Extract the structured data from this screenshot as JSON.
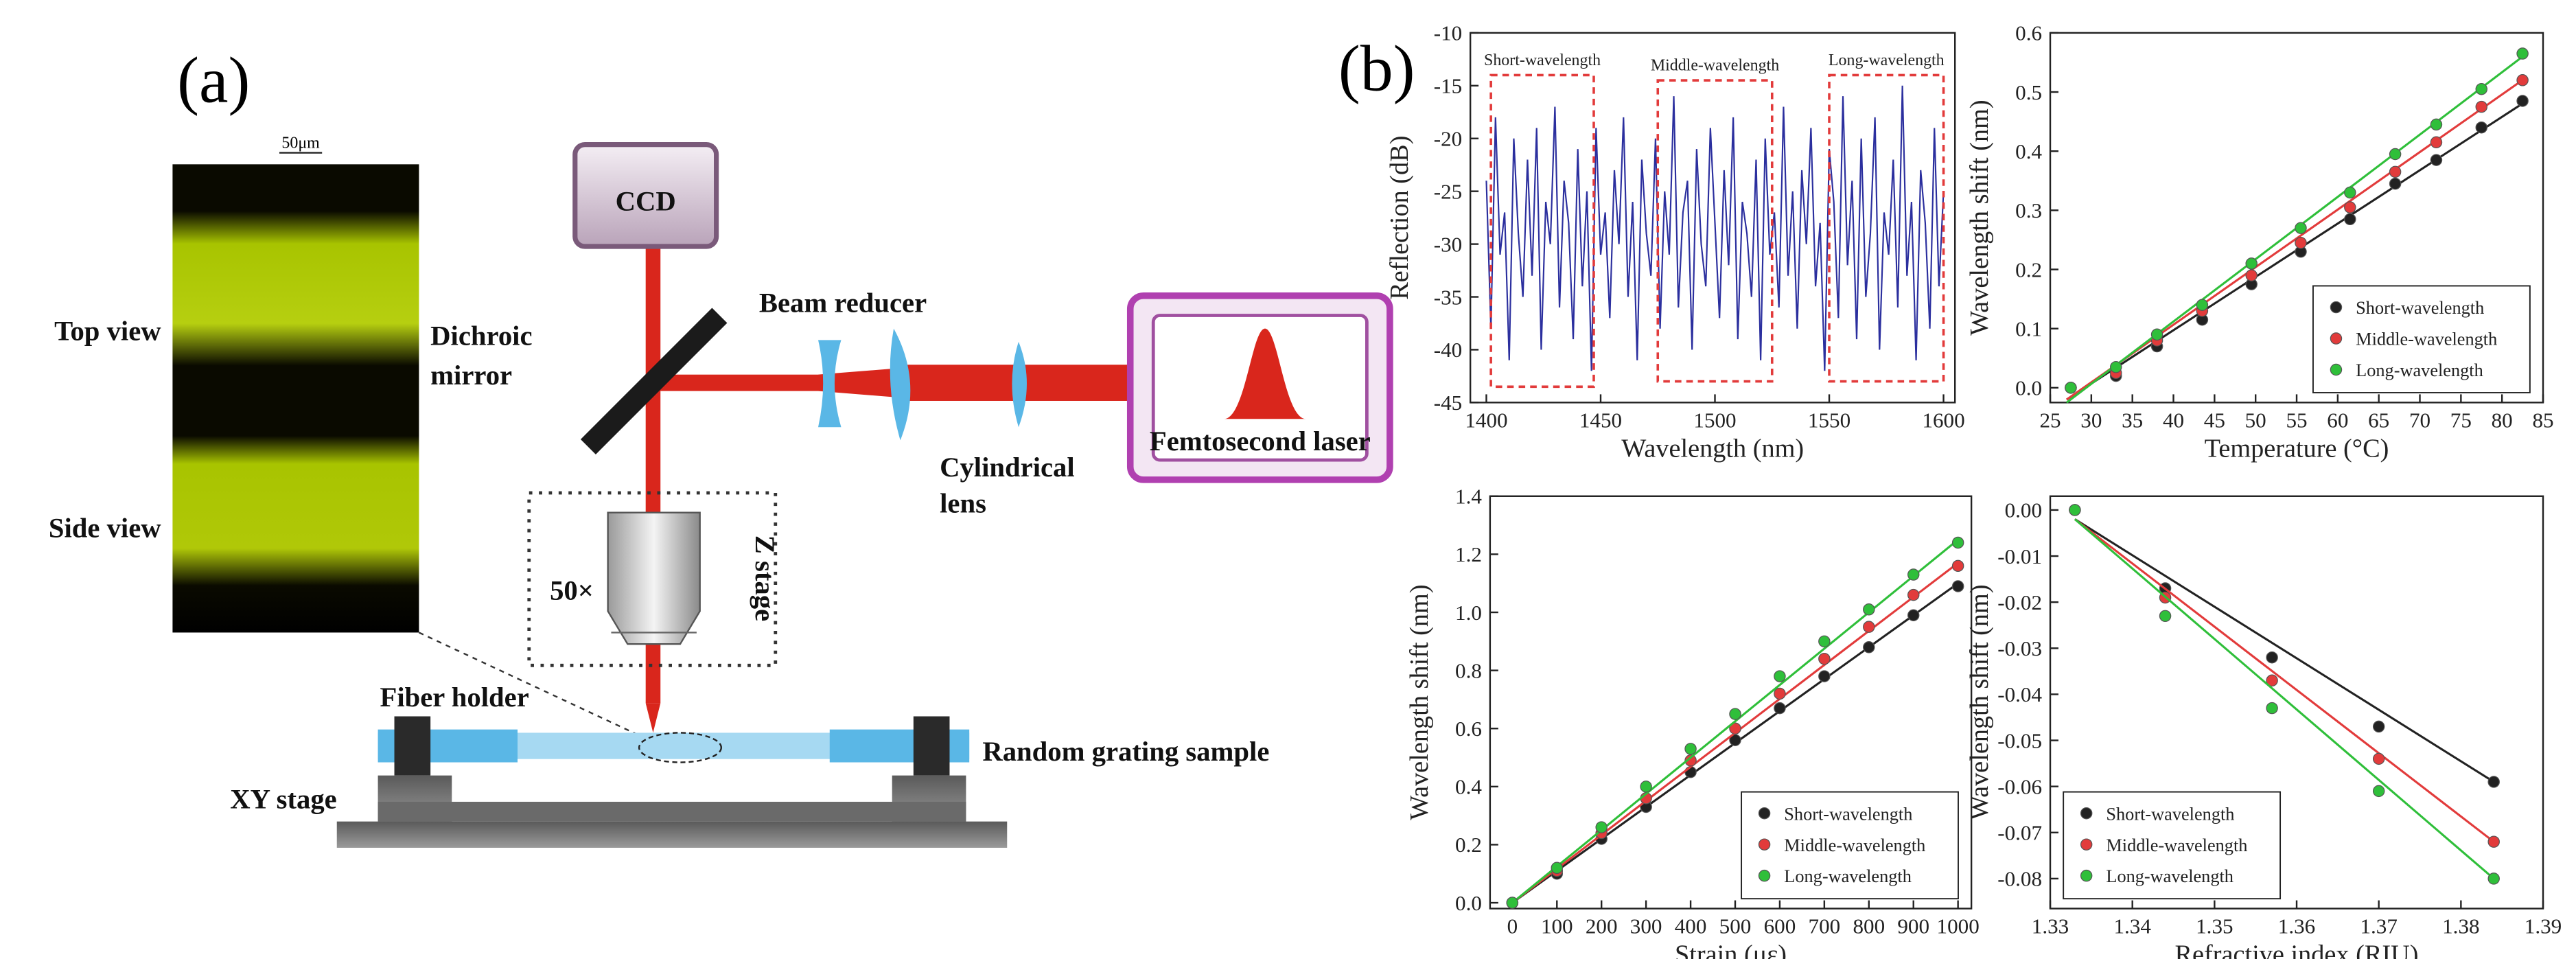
{
  "panel_labels": [
    "(a)",
    "(b)"
  ],
  "diagram": {
    "micrograph_scale": "50μm",
    "top_view": "Top view",
    "side_view": "Side view",
    "ccd": "CCD",
    "dichroic_mirror": [
      "Dichroic",
      "mirror"
    ],
    "beam_reducer": "Beam reducer",
    "cylindrical_lens": [
      "Cylindrical",
      "lens"
    ],
    "laser": "Femtosecond laser",
    "z_stage": "Z stage",
    "objective": "50×",
    "fiber_holder": "Fiber holder",
    "sample": "Random grating sample",
    "xy_stage": "XY stage"
  },
  "chart_data": [
    {
      "type": "line",
      "xlabel": "Wavelength (nm)",
      "ylabel": "Reflection (dB)",
      "color": "#2b2f9e",
      "xlim": [
        1393,
        1605
      ],
      "ylim": [
        -45,
        -10
      ],
      "xticks": [
        1400,
        1450,
        1500,
        1550,
        1600
      ],
      "yticks": [
        -10,
        -15,
        -20,
        -25,
        -30,
        -35,
        -40,
        -45
      ],
      "x": [
        1400,
        1402,
        1404,
        1406,
        1408,
        1410,
        1412,
        1414,
        1416,
        1418,
        1420,
        1422,
        1424,
        1426,
        1428,
        1430,
        1432,
        1434,
        1436,
        1438,
        1440,
        1442,
        1444,
        1446,
        1448,
        1450,
        1452,
        1454,
        1456,
        1458,
        1460,
        1462,
        1464,
        1466,
        1468,
        1470,
        1472,
        1474,
        1476,
        1478,
        1480,
        1482,
        1484,
        1486,
        1488,
        1490,
        1492,
        1494,
        1496,
        1498,
        1500,
        1502,
        1504,
        1506,
        1508,
        1510,
        1512,
        1514,
        1516,
        1518,
        1520,
        1522,
        1524,
        1526,
        1528,
        1530,
        1532,
        1534,
        1536,
        1538,
        1540,
        1542,
        1544,
        1546,
        1548,
        1550,
        1552,
        1554,
        1556,
        1558,
        1560,
        1562,
        1564,
        1566,
        1568,
        1570,
        1572,
        1574,
        1576,
        1578,
        1580,
        1582,
        1584,
        1586,
        1588,
        1590,
        1592,
        1594,
        1596,
        1598,
        1600
      ],
      "values": [
        -24,
        -38,
        -18,
        -31,
        -27,
        -41,
        -20,
        -29,
        -35,
        -22,
        -33,
        -19,
        -40,
        -26,
        -30,
        -17,
        -36,
        -24,
        -28,
        -39,
        -21,
        -34,
        -25,
        -42,
        -19,
        -31,
        -27,
        -37,
        -23,
        -30,
        -18,
        -35,
        -26,
        -41,
        -22,
        -29,
        -33,
        -20,
        -38,
        -25,
        -31,
        -16,
        -36,
        -27,
        -24,
        -40,
        -21,
        -30,
        -34,
        -19,
        -28,
        -37,
        -23,
        -32,
        -18,
        -39,
        -26,
        -29,
        -35,
        -22,
        -41,
        -20,
        -31,
        -27,
        -36,
        -17,
        -33,
        -25,
        -38,
        -23,
        -30,
        -19,
        -34,
        -28,
        -42,
        -21,
        -26,
        -37,
        -16,
        -32,
        -24,
        -39,
        -20,
        -35,
        -29,
        -18,
        -40,
        -27,
        -31,
        -22,
        -36,
        -15,
        -33,
        -26,
        -41,
        -23,
        -28,
        -38,
        -19,
        -34,
        -25
      ],
      "annotations": [
        {
          "text": "Short-wavelength",
          "color": "#e23b3b",
          "x": [
            1402,
            1447
          ],
          "y": [
            -43.5,
            -14
          ]
        },
        {
          "text": "Middle-wavelength",
          "color": "#e23b3b",
          "x": [
            1475,
            1525
          ],
          "y": [
            -43,
            -14.5
          ]
        },
        {
          "text": "Long-wavelength",
          "color": "#e23b3b",
          "x": [
            1550,
            1600
          ],
          "y": [
            -43,
            -14
          ]
        }
      ]
    },
    {
      "type": "scatter",
      "xlabel": "Temperature (°C)",
      "ylabel": "Wavelength shift (nm)",
      "legend": "lower right",
      "xlim": [
        25,
        85
      ],
      "ylim": [
        -0.025,
        0.6
      ],
      "xticks": [
        25,
        30,
        35,
        40,
        45,
        50,
        55,
        60,
        65,
        70,
        75,
        80,
        85
      ],
      "yticks": [
        {
          "value": 0,
          "label": "0.0"
        },
        0.1,
        0.2,
        0.3,
        0.4,
        0.5,
        0.6
      ],
      "x": [
        27.5,
        33,
        38,
        43.5,
        49.5,
        55.5,
        61.5,
        67,
        72,
        77.5,
        82.5
      ],
      "series": [
        {
          "name": "Short-wavelength",
          "color": "#222222",
          "values": [
            0,
            0.02,
            0.07,
            0.115,
            0.175,
            0.23,
            0.285,
            0.345,
            0.385,
            0.44,
            0.485
          ],
          "fit": {
            "x": [
              27,
              83
            ],
            "y": [
              -0.02,
              0.485
            ]
          }
        },
        {
          "name": "Middle-wavelength",
          "color": "#e23b3b",
          "values": [
            0,
            0.025,
            0.08,
            0.13,
            0.19,
            0.245,
            0.305,
            0.365,
            0.415,
            0.475,
            0.52
          ],
          "fit": {
            "x": [
              27,
              83
            ],
            "y": [
              -0.02,
              0.525
            ]
          }
        },
        {
          "name": "Long-wavelength",
          "color": "#2fbf3a",
          "values": [
            0,
            0.035,
            0.09,
            0.14,
            0.21,
            0.27,
            0.33,
            0.395,
            0.445,
            0.505,
            0.565
          ],
          "fit": {
            "x": [
              27,
              83
            ],
            "y": [
              -0.025,
              0.565
            ]
          }
        }
      ]
    },
    {
      "type": "scatter",
      "xlabel": "Strain (με)",
      "ylabel": "Wavelength shift (nm)",
      "legend": "lower right",
      "xlim": [
        -50,
        1030
      ],
      "ylim": [
        -0.02,
        1.4
      ],
      "xticks": [
        0,
        100,
        200,
        300,
        400,
        500,
        600,
        700,
        800,
        900,
        1000
      ],
      "yticks": [
        {
          "value": 0,
          "label": "0.0"
        },
        0.2,
        0.4,
        0.6,
        0.8,
        {
          "value": 1,
          "label": "1.0"
        },
        1.2,
        1.4
      ],
      "x": [
        0,
        100,
        200,
        300,
        400,
        500,
        600,
        700,
        800,
        900,
        1000
      ],
      "series": [
        {
          "name": "Short-wavelength",
          "color": "#222222",
          "values": [
            0,
            0.1,
            0.22,
            0.33,
            0.45,
            0.56,
            0.67,
            0.78,
            0.88,
            0.99,
            1.09
          ],
          "fit": {
            "x": [
              0,
              1000
            ],
            "y": [
              0,
              1.1
            ]
          }
        },
        {
          "name": "Middle-wavelength",
          "color": "#e23b3b",
          "values": [
            0,
            0.11,
            0.24,
            0.36,
            0.49,
            0.6,
            0.72,
            0.84,
            0.95,
            1.06,
            1.16
          ],
          "fit": {
            "x": [
              0,
              1000
            ],
            "y": [
              0,
              1.17
            ]
          }
        },
        {
          "name": "Long-wavelength",
          "color": "#2fbf3a",
          "values": [
            0,
            0.12,
            0.26,
            0.4,
            0.53,
            0.65,
            0.78,
            0.9,
            1.01,
            1.13,
            1.24
          ],
          "fit": {
            "x": [
              0,
              1000
            ],
            "y": [
              0,
              1.25
            ]
          }
        }
      ]
    },
    {
      "type": "scatter",
      "xlabel": "Refractive index (RIU)",
      "ylabel": "Wavelength shift (nm)",
      "legend": "lower left",
      "xlim": [
        1.33,
        1.39
      ],
      "ylim": [
        -0.0865,
        0.003
      ],
      "xticks": [
        1.33,
        1.34,
        1.35,
        1.36,
        1.37,
        1.38,
        1.39
      ],
      "yticks": [
        {
          "value": 0,
          "label": "0.00"
        },
        -0.01,
        -0.02,
        -0.03,
        -0.04,
        -0.05,
        -0.06,
        -0.07,
        -0.08
      ],
      "x": [
        1.333,
        1.344,
        1.357,
        1.37,
        1.384
      ],
      "series": [
        {
          "name": "Short-wavelength",
          "color": "#222222",
          "values": [
            0,
            -0.017,
            -0.032,
            -0.047,
            -0.059
          ],
          "fit": {
            "x": [
              1.333,
              1.384
            ],
            "y": [
              -0.002,
              -0.059
            ]
          }
        },
        {
          "name": "Middle-wavelength",
          "color": "#e23b3b",
          "values": [
            0,
            -0.019,
            -0.037,
            -0.054,
            -0.072
          ],
          "fit": {
            "x": [
              1.333,
              1.384
            ],
            "y": [
              -0.002,
              -0.072
            ]
          }
        },
        {
          "name": "Long-wavelength",
          "color": "#2fbf3a",
          "values": [
            0,
            -0.023,
            -0.043,
            -0.061,
            -0.08
          ],
          "fit": {
            "x": [
              1.333,
              1.384
            ],
            "y": [
              -0.002,
              -0.08
            ]
          }
        }
      ]
    }
  ]
}
